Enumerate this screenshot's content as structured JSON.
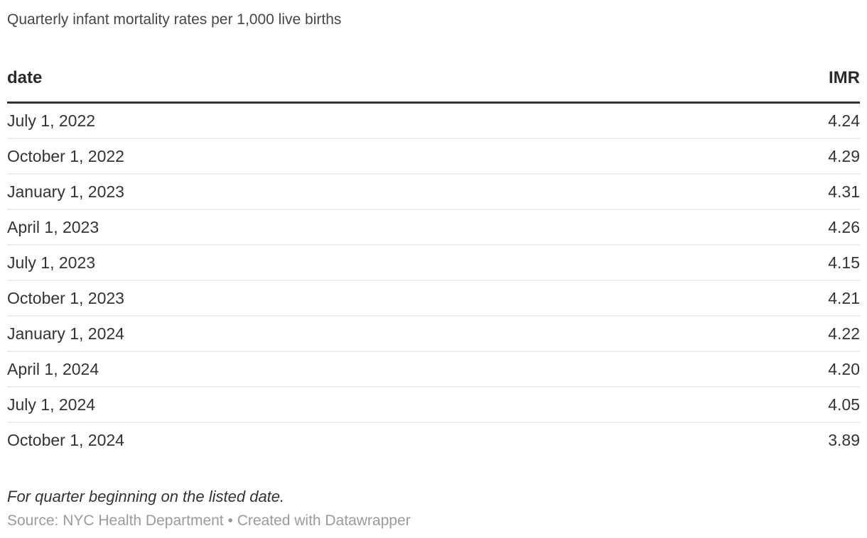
{
  "header": {
    "title": "Quarterly infant mortality rates per 1,000 live births"
  },
  "table": {
    "columns": {
      "date_label": "date",
      "imr_label": "IMR"
    },
    "rows": [
      {
        "date": "July 1, 2022",
        "imr": "4.24"
      },
      {
        "date": "October 1, 2022",
        "imr": "4.29"
      },
      {
        "date": "January 1, 2023",
        "imr": "4.31"
      },
      {
        "date": "April 1, 2023",
        "imr": "4.26"
      },
      {
        "date": "July 1, 2023",
        "imr": "4.15"
      },
      {
        "date": "October 1, 2023",
        "imr": "4.21"
      },
      {
        "date": "January 1, 2024",
        "imr": "4.22"
      },
      {
        "date": "April 1, 2024",
        "imr": "4.20"
      },
      {
        "date": "July 1, 2024",
        "imr": "4.05"
      },
      {
        "date": "October 1, 2024",
        "imr": "3.89"
      }
    ]
  },
  "footer": {
    "note": "For quarter beginning on the listed date.",
    "source_prefix": "Source: ",
    "source_name": "NYC Health Department",
    "separator": " • ",
    "attribution": "Created with Datawrapper"
  },
  "colors": {
    "header_rule": "#333333",
    "row_divider": "#ededed",
    "title_text": "#464646",
    "body_text": "#333333",
    "muted_text": "#9b9b9b"
  },
  "chart_data": {
    "type": "table",
    "title": "Quarterly infant mortality rates per 1,000 live births",
    "columns": [
      "date",
      "IMR"
    ],
    "rows": [
      [
        "July 1, 2022",
        4.24
      ],
      [
        "October 1, 2022",
        4.29
      ],
      [
        "January 1, 2023",
        4.31
      ],
      [
        "April 1, 2023",
        4.26
      ],
      [
        "July 1, 2023",
        4.15
      ],
      [
        "October 1, 2023",
        4.21
      ],
      [
        "January 1, 2024",
        4.22
      ],
      [
        "April 1, 2024",
        4.2
      ],
      [
        "July 1, 2024",
        4.05
      ],
      [
        "October 1, 2024",
        3.89
      ]
    ],
    "note": "For quarter beginning on the listed date.",
    "source": "NYC Health Department",
    "attribution": "Created with Datawrapper"
  }
}
